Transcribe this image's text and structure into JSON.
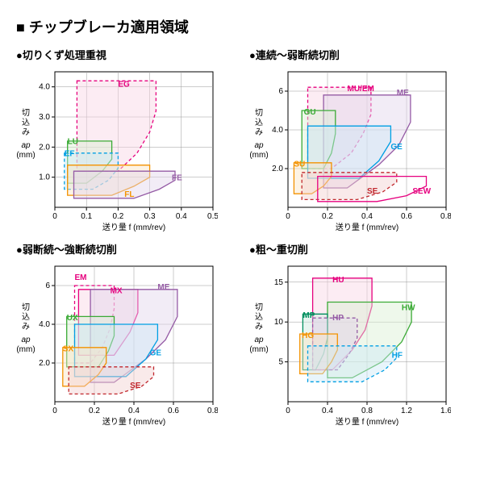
{
  "title": "■ チップブレーカ適用領域",
  "xlabel": "送り量 f (mm/rev)",
  "ylabel_top": "切込み",
  "ylabel_mid": "ap",
  "ylabel_bot": "(mm)",
  "panels": [
    {
      "subtitle": "●切りくず処理重視",
      "xlim": [
        0,
        0.5
      ],
      "xticks": [
        0,
        0.1,
        0.2,
        0.3,
        0.4,
        0.5
      ],
      "ylim": [
        0,
        4.5
      ],
      "yticks": [
        1.0,
        2.0,
        3.0,
        4.0
      ],
      "regions": [
        {
          "label": "EG",
          "color": "#e6007e",
          "fill": "#f9d5e5",
          "poly": [
            [
              0.07,
              4.2
            ],
            [
              0.32,
              4.2
            ],
            [
              0.32,
              3.2
            ],
            [
              0.3,
              2.5
            ],
            [
              0.26,
              1.8
            ],
            [
              0.2,
              1.2
            ],
            [
              0.07,
              1.2
            ]
          ],
          "lx": 0.2,
          "ly": 4.0,
          "dash": true
        },
        {
          "label": "LU",
          "color": "#3aaa35",
          "fill": "#d9efd3",
          "poly": [
            [
              0.04,
              2.2
            ],
            [
              0.18,
              2.2
            ],
            [
              0.18,
              1.6
            ],
            [
              0.15,
              1.2
            ],
            [
              0.1,
              0.8
            ],
            [
              0.04,
              0.8
            ]
          ],
          "lx": 0.04,
          "ly": 2.1,
          "dash": false
        },
        {
          "label": "EF",
          "color": "#009fe3",
          "fill": "#cce9f7",
          "poly": [
            [
              0.03,
              1.8
            ],
            [
              0.2,
              1.8
            ],
            [
              0.2,
              1.3
            ],
            [
              0.17,
              0.9
            ],
            [
              0.12,
              0.6
            ],
            [
              0.03,
              0.6
            ]
          ],
          "lx": 0.03,
          "ly": 1.7,
          "dash": true
        },
        {
          "label": "FL",
          "color": "#f39200",
          "fill": "#fbe4c4",
          "poly": [
            [
              0.04,
              1.4
            ],
            [
              0.3,
              1.4
            ],
            [
              0.3,
              1.0
            ],
            [
              0.25,
              0.7
            ],
            [
              0.18,
              0.4
            ],
            [
              0.04,
              0.4
            ]
          ],
          "lx": 0.22,
          "ly": 0.35,
          "dash": false
        },
        {
          "label": "FE",
          "color": "#955ba5",
          "fill": "#e3d5ea",
          "poly": [
            [
              0.06,
              1.2
            ],
            [
              0.38,
              1.2
            ],
            [
              0.38,
              0.9
            ],
            [
              0.33,
              0.6
            ],
            [
              0.25,
              0.3
            ],
            [
              0.06,
              0.3
            ]
          ],
          "lx": 0.37,
          "ly": 0.9,
          "dash": false
        }
      ]
    },
    {
      "subtitle": "●連続～弱断続切削",
      "xlim": [
        0,
        0.8
      ],
      "xticks": [
        0,
        0.2,
        0.4,
        0.6,
        0.8
      ],
      "ylim": [
        0,
        7.0
      ],
      "yticks": [
        2.0,
        4.0,
        6.0
      ],
      "regions": [
        {
          "label": "MU/EM",
          "color": "#e6007e",
          "fill": "#f9d5e5",
          "poly": [
            [
              0.1,
              6.2
            ],
            [
              0.42,
              6.2
            ],
            [
              0.42,
              4.8
            ],
            [
              0.38,
              3.8
            ],
            [
              0.32,
              2.8
            ],
            [
              0.22,
              2.0
            ],
            [
              0.1,
              2.0
            ]
          ],
          "lx": 0.3,
          "ly": 6.0,
          "dash": true
        },
        {
          "label": "ME",
          "color": "#955ba5",
          "fill": "#e3d5ea",
          "poly": [
            [
              0.18,
              5.8
            ],
            [
              0.62,
              5.8
            ],
            [
              0.62,
              4.4
            ],
            [
              0.56,
              3.2
            ],
            [
              0.46,
              2.2
            ],
            [
              0.3,
              1.0
            ],
            [
              0.18,
              1.0
            ]
          ],
          "lx": 0.55,
          "ly": 5.8,
          "dash": false
        },
        {
          "label": "GU",
          "color": "#3aaa35",
          "fill": "#d9efd3",
          "poly": [
            [
              0.07,
              5.0
            ],
            [
              0.24,
              5.0
            ],
            [
              0.24,
              3.8
            ],
            [
              0.22,
              2.8
            ],
            [
              0.18,
              2.0
            ],
            [
              0.07,
              2.0
            ]
          ],
          "lx": 0.08,
          "ly": 4.8,
          "dash": false
        },
        {
          "label": "GE",
          "color": "#009fe3",
          "fill": "#cce9f7",
          "poly": [
            [
              0.1,
              4.2
            ],
            [
              0.52,
              4.2
            ],
            [
              0.52,
              3.4
            ],
            [
              0.46,
              2.4
            ],
            [
              0.36,
              1.5
            ],
            [
              0.1,
              1.5
            ]
          ],
          "lx": 0.52,
          "ly": 3.0,
          "dash": false
        },
        {
          "label": "SU",
          "color": "#f39200",
          "fill": "#fbe4c4",
          "poly": [
            [
              0.03,
              2.3
            ],
            [
              0.22,
              2.3
            ],
            [
              0.22,
              1.6
            ],
            [
              0.18,
              1.1
            ],
            [
              0.12,
              0.7
            ],
            [
              0.03,
              0.7
            ]
          ],
          "lx": 0.03,
          "ly": 2.1,
          "dash": false
        },
        {
          "label": "SE",
          "color": "#c1272d",
          "fill": "#f2d0d0",
          "poly": [
            [
              0.07,
              1.8
            ],
            [
              0.55,
              1.8
            ],
            [
              0.55,
              1.3
            ],
            [
              0.48,
              0.8
            ],
            [
              0.35,
              0.4
            ],
            [
              0.07,
              0.4
            ]
          ],
          "lx": 0.4,
          "ly": 0.7,
          "dash": true
        },
        {
          "label": "SEW",
          "color": "#e6007e",
          "fill": "none",
          "poly": [
            [
              0.15,
              1.6
            ],
            [
              0.7,
              1.6
            ],
            [
              0.7,
              1.1
            ],
            [
              0.6,
              0.6
            ],
            [
              0.45,
              0.3
            ],
            [
              0.15,
              0.3
            ]
          ],
          "lx": 0.63,
          "ly": 0.7,
          "dash": false
        }
      ]
    },
    {
      "subtitle": "●弱断続～強断続切削",
      "xlim": [
        0,
        0.8
      ],
      "xticks": [
        0,
        0.2,
        0.4,
        0.6,
        0.8
      ],
      "ylim": [
        0,
        7.0
      ],
      "yticks": [
        2.0,
        4.0,
        6.0
      ],
      "regions": [
        {
          "label": "EM",
          "color": "#e6007e",
          "fill": "none",
          "poly": [
            [
              0.1,
              6.0
            ],
            [
              0.3,
              6.0
            ],
            [
              0.3,
              4.8
            ],
            [
              0.28,
              3.8
            ],
            [
              0.24,
              2.8
            ],
            [
              0.18,
              2.0
            ],
            [
              0.1,
              2.0
            ]
          ],
          "lx": 0.1,
          "ly": 6.3,
          "dash": true
        },
        {
          "label": "MX",
          "color": "#e6007e",
          "fill": "#f9d5e5",
          "poly": [
            [
              0.12,
              5.8
            ],
            [
              0.42,
              5.8
            ],
            [
              0.42,
              4.6
            ],
            [
              0.38,
              3.6
            ],
            [
              0.3,
              2.4
            ],
            [
              0.12,
              2.4
            ]
          ],
          "lx": 0.28,
          "ly": 5.6,
          "dash": false
        },
        {
          "label": "ME",
          "color": "#955ba5",
          "fill": "#e3d5ea",
          "poly": [
            [
              0.18,
              5.8
            ],
            [
              0.62,
              5.8
            ],
            [
              0.62,
              4.4
            ],
            [
              0.56,
              3.2
            ],
            [
              0.46,
              2.2
            ],
            [
              0.3,
              1.0
            ],
            [
              0.18,
              1.0
            ]
          ],
          "lx": 0.52,
          "ly": 5.8,
          "dash": false
        },
        {
          "label": "UX",
          "color": "#3aaa35",
          "fill": "#d9efd3",
          "poly": [
            [
              0.06,
              4.4
            ],
            [
              0.3,
              4.4
            ],
            [
              0.3,
              3.4
            ],
            [
              0.27,
              2.6
            ],
            [
              0.22,
              1.8
            ],
            [
              0.06,
              1.8
            ]
          ],
          "lx": 0.06,
          "ly": 4.2,
          "dash": false
        },
        {
          "label": "GE",
          "color": "#009fe3",
          "fill": "#cce9f7",
          "poly": [
            [
              0.1,
              4.0
            ],
            [
              0.52,
              4.0
            ],
            [
              0.52,
              3.2
            ],
            [
              0.46,
              2.2
            ],
            [
              0.36,
              1.3
            ],
            [
              0.1,
              1.3
            ]
          ],
          "lx": 0.48,
          "ly": 2.4,
          "dash": false
        },
        {
          "label": "SX",
          "color": "#f39200",
          "fill": "#fbe4c4",
          "poly": [
            [
              0.04,
              2.8
            ],
            [
              0.26,
              2.8
            ],
            [
              0.26,
              2.0
            ],
            [
              0.22,
              1.4
            ],
            [
              0.15,
              0.8
            ],
            [
              0.04,
              0.8
            ]
          ],
          "lx": 0.04,
          "ly": 2.6,
          "dash": false
        },
        {
          "label": "SE",
          "color": "#c1272d",
          "fill": "#f2d0d0",
          "poly": [
            [
              0.07,
              1.8
            ],
            [
              0.5,
              1.8
            ],
            [
              0.5,
              1.3
            ],
            [
              0.44,
              0.8
            ],
            [
              0.32,
              0.4
            ],
            [
              0.07,
              0.4
            ]
          ],
          "lx": 0.38,
          "ly": 0.7,
          "dash": true
        }
      ]
    },
    {
      "subtitle": "●粗～重切削",
      "xlim": [
        0,
        1.6
      ],
      "xticks": [
        0,
        0.4,
        0.8,
        1.2,
        1.6
      ],
      "ylim": [
        0,
        17
      ],
      "yticks": [
        5.0,
        10.0,
        15.0
      ],
      "regions": [
        {
          "label": "HU",
          "color": "#e6007e",
          "fill": "#f9d5e5",
          "poly": [
            [
              0.25,
              15.5
            ],
            [
              0.85,
              15.5
            ],
            [
              0.85,
              12
            ],
            [
              0.78,
              9
            ],
            [
              0.65,
              6.5
            ],
            [
              0.45,
              4.0
            ],
            [
              0.25,
              4.0
            ]
          ],
          "lx": 0.45,
          "ly": 15.0,
          "dash": false
        },
        {
          "label": "HW",
          "color": "#3aaa35",
          "fill": "#d9efd3",
          "poly": [
            [
              0.4,
              12.5
            ],
            [
              1.25,
              12.5
            ],
            [
              1.25,
              10
            ],
            [
              1.15,
              7.5
            ],
            [
              0.95,
              5.0
            ],
            [
              0.65,
              3.0
            ],
            [
              0.4,
              3.0
            ]
          ],
          "lx": 1.15,
          "ly": 11.5,
          "dash": false
        },
        {
          "label": "MP",
          "color": "#008f5e",
          "fill": "#cde9dd",
          "poly": [
            [
              0.15,
              11
            ],
            [
              0.4,
              11
            ],
            [
              0.4,
              8
            ],
            [
              0.36,
              6
            ],
            [
              0.28,
              4
            ],
            [
              0.15,
              4
            ]
          ],
          "lx": 0.15,
          "ly": 10.5,
          "dash": false
        },
        {
          "label": "HP",
          "color": "#955ba5",
          "fill": "#e3d5ea",
          "poly": [
            [
              0.25,
              10.5
            ],
            [
              0.7,
              10.5
            ],
            [
              0.7,
              8
            ],
            [
              0.62,
              6
            ],
            [
              0.5,
              4
            ],
            [
              0.25,
              4
            ]
          ],
          "lx": 0.45,
          "ly": 10.2,
          "dash": true
        },
        {
          "label": "HG",
          "color": "#f39200",
          "fill": "#fbe4c4",
          "poly": [
            [
              0.12,
              8.5
            ],
            [
              0.5,
              8.5
            ],
            [
              0.5,
              6.5
            ],
            [
              0.44,
              5
            ],
            [
              0.35,
              3.5
            ],
            [
              0.12,
              3.5
            ]
          ],
          "lx": 0.14,
          "ly": 8.0,
          "dash": false
        },
        {
          "label": "HF",
          "color": "#009fe3",
          "fill": "#cce9f7",
          "poly": [
            [
              0.2,
              7
            ],
            [
              1.1,
              7
            ],
            [
              1.1,
              5.5
            ],
            [
              0.98,
              4
            ],
            [
              0.75,
              2.5
            ],
            [
              0.2,
              2.5
            ]
          ],
          "lx": 1.05,
          "ly": 5.5,
          "dash": true
        }
      ]
    }
  ]
}
